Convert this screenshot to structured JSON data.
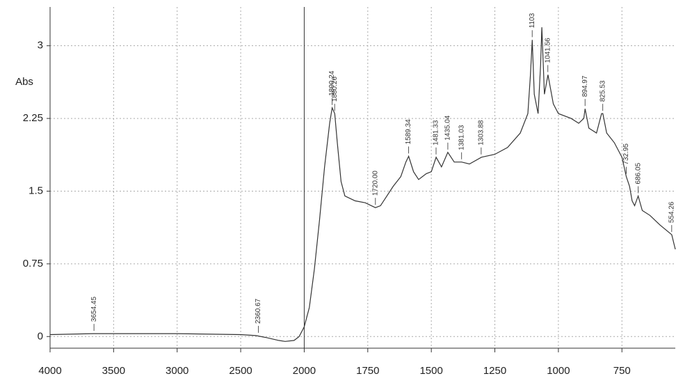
{
  "chart_data": {
    "type": "line",
    "y_label": "Abs",
    "xlim": [
      4000,
      540
    ],
    "x_scale_break": 2000,
    "ylim": [
      -0.12,
      3.4
    ],
    "xticks": [
      4000,
      3500,
      3000,
      2500,
      2000,
      1750,
      1500,
      1250,
      1000,
      750
    ],
    "yticks": [
      0,
      0.75,
      1.5,
      2.25,
      3
    ],
    "grid": true,
    "color": "#333333",
    "x": [
      4000,
      3654,
      3000,
      2500,
      2380,
      2300,
      2200,
      2150,
      2080,
      2040,
      2000,
      1980,
      1960,
      1940,
      1920,
      1900,
      1890,
      1880,
      1870,
      1855,
      1840,
      1800,
      1760,
      1720,
      1700,
      1650,
      1620,
      1600,
      1589,
      1570,
      1550,
      1520,
      1500,
      1481,
      1460,
      1435,
      1410,
      1381,
      1350,
      1303,
      1250,
      1200,
      1150,
      1120,
      1110,
      1103,
      1095,
      1080,
      1070,
      1065,
      1055,
      1041,
      1020,
      1000,
      950,
      920,
      900,
      895,
      880,
      850,
      830,
      825,
      810,
      780,
      750,
      733,
      720,
      710,
      700,
      686,
      670,
      640,
      600,
      554,
      540
    ],
    "values": [
      0.02,
      0.03,
      0.03,
      0.02,
      0.01,
      -0.01,
      -0.04,
      -0.05,
      -0.04,
      0.0,
      0.1,
      0.3,
      0.7,
      1.2,
      1.75,
      2.2,
      2.36,
      2.3,
      2.0,
      1.6,
      1.45,
      1.4,
      1.38,
      1.33,
      1.35,
      1.55,
      1.65,
      1.8,
      1.86,
      1.7,
      1.62,
      1.68,
      1.7,
      1.85,
      1.75,
      1.9,
      1.8,
      1.8,
      1.78,
      1.85,
      1.88,
      1.95,
      2.1,
      2.3,
      2.7,
      3.06,
      2.5,
      2.3,
      2.8,
      3.19,
      2.5,
      2.7,
      2.4,
      2.3,
      2.25,
      2.2,
      2.25,
      2.35,
      2.15,
      2.1,
      2.3,
      2.3,
      2.1,
      2.0,
      1.85,
      1.65,
      1.55,
      1.4,
      1.35,
      1.45,
      1.3,
      1.25,
      1.15,
      1.05,
      0.9
    ],
    "annotations": [
      {
        "x": 3654.45,
        "y": 0.03,
        "label": "3654.45"
      },
      {
        "x": 2360.67,
        "y": 0.01,
        "label": "2360.67"
      },
      {
        "x": 1890.24,
        "y": 2.36,
        "label": "1890.24"
      },
      {
        "x": 1880.26,
        "y": 2.3,
        "label": "1880.26"
      },
      {
        "x": 1720.0,
        "y": 1.33,
        "label": "1720.00"
      },
      {
        "x": 1589.34,
        "y": 1.86,
        "label": "1589.34"
      },
      {
        "x": 1481.33,
        "y": 1.85,
        "label": "1481.33"
      },
      {
        "x": 1435.04,
        "y": 1.9,
        "label": "1435.04"
      },
      {
        "x": 1381.03,
        "y": 1.8,
        "label": "1381.03"
      },
      {
        "x": 1303.88,
        "y": 1.85,
        "label": "1303.88"
      },
      {
        "x": 1103,
        "y": 3.06,
        "label": "1103"
      },
      {
        "x": 1041.56,
        "y": 2.7,
        "label": "1041.56"
      },
      {
        "x": 894.97,
        "y": 2.35,
        "label": "894.97"
      },
      {
        "x": 825.53,
        "y": 2.3,
        "label": "825.53"
      },
      {
        "x": 732.95,
        "y": 1.65,
        "label": "732.95"
      },
      {
        "x": 686.05,
        "y": 1.45,
        "label": "686.05"
      },
      {
        "x": 554.26,
        "y": 1.05,
        "label": "554.26"
      }
    ]
  }
}
